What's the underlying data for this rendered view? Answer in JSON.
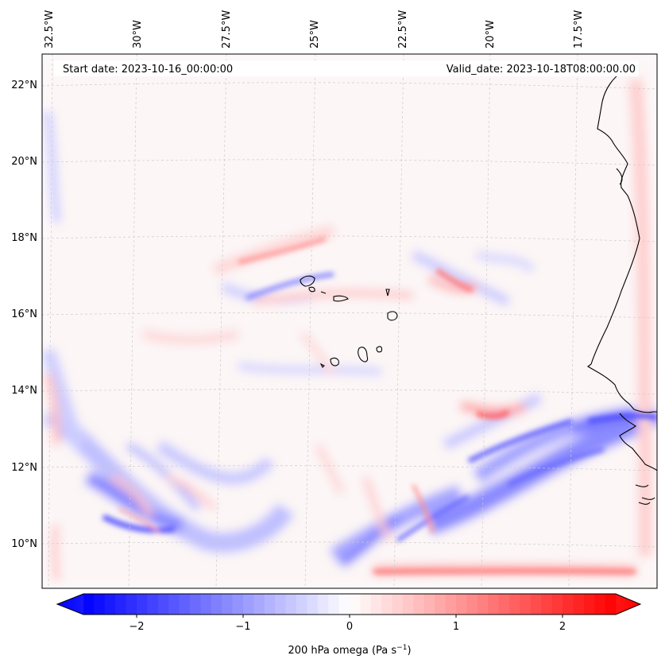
{
  "map": {
    "start_date": "Start date: 2023-10-16_00:00:00",
    "valid_date": "Valid_date: 2023-10-18T08:00:00.00",
    "lon_labels": [
      "32.5°W",
      "30°W",
      "27.5°W",
      "25°W",
      "22.5°W",
      "20°W",
      "17.5°W"
    ],
    "lat_labels": [
      "22°N",
      "20°N",
      "18°N",
      "16°N",
      "14°N",
      "12°N",
      "10°N"
    ],
    "colors": {
      "negative": "#0000ff",
      "zero": "#ffffff",
      "positive": "#ff0000",
      "grid": "#cccccc",
      "coast": "#000000"
    }
  },
  "colorbar": {
    "ticks": [
      "−2",
      "−1",
      "0",
      "1",
      "2"
    ],
    "range": [
      -2.75,
      2.75
    ],
    "label": "200 hPa omega (Pa s",
    "label_sup": "−1",
    "label_tail": ")"
  }
}
